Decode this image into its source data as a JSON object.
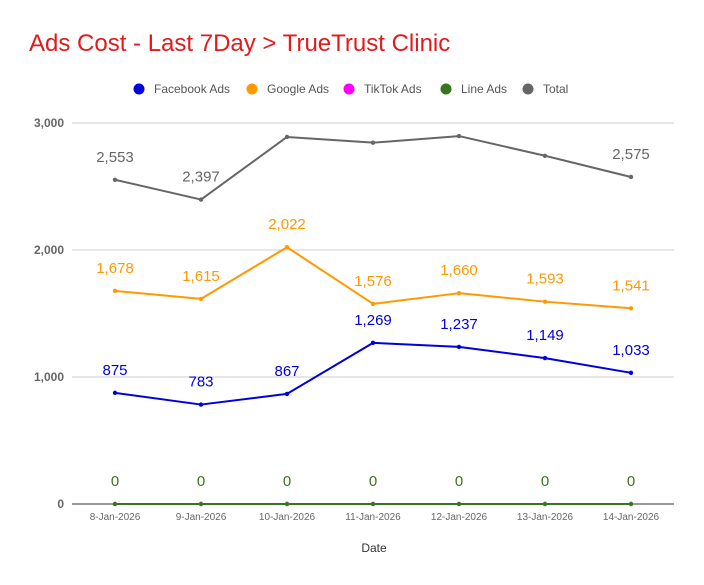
{
  "chart_data": {
    "type": "line",
    "title": "Ads Cost - Last 7Day > TrueTrust Clinic",
    "xlabel": "Date",
    "ylabel": "",
    "ylim": [
      0,
      3000
    ],
    "yticks": [
      0,
      1000,
      2000,
      3000
    ],
    "ytick_labels": [
      "0",
      "1,000",
      "2,000",
      "3,000"
    ],
    "categories": [
      "8-Jan-2026",
      "9-Jan-2026",
      "10-Jan-2026",
      "11-Jan-2026",
      "12-Jan-2026",
      "13-Jan-2026",
      "14-Jan-2026"
    ],
    "grid": true,
    "legend_position": "top-center",
    "series": [
      {
        "name": "Facebook Ads",
        "color": "#0000dd",
        "values": [
          875,
          783,
          867,
          1269,
          1237,
          1149,
          1033
        ],
        "labels": [
          "875",
          "783",
          "867",
          "1,269",
          "1,237",
          "1,149",
          "1,033"
        ],
        "show_labels": [
          true,
          true,
          true,
          true,
          true,
          true,
          true
        ]
      },
      {
        "name": "Google Ads",
        "color": "#ff9900",
        "values": [
          1678,
          1615,
          2022,
          1576,
          1660,
          1593,
          1541
        ],
        "labels": [
          "1,678",
          "1,615",
          "2,022",
          "1,576",
          "1,660",
          "1,593",
          "1,541"
        ],
        "show_labels": [
          true,
          true,
          true,
          true,
          true,
          true,
          true
        ]
      },
      {
        "name": "TikTok Ads",
        "color": "#ff00ff",
        "values": [
          0,
          0,
          0,
          0,
          0,
          0,
          0
        ],
        "labels": [],
        "show_labels": [
          false,
          false,
          false,
          false,
          false,
          false,
          false
        ]
      },
      {
        "name": "Line Ads",
        "color": "#38761d",
        "values": [
          0,
          0,
          0,
          0,
          0,
          0,
          0
        ],
        "labels": [
          "0",
          "0",
          "0",
          "0",
          "0",
          "0",
          "0"
        ],
        "show_labels": [
          true,
          true,
          true,
          true,
          true,
          true,
          true
        ]
      },
      {
        "name": "Total",
        "color": "#666666",
        "values": [
          2553,
          2397,
          2890,
          2845,
          2897,
          2742,
          2575
        ],
        "labels": [
          "2,553",
          "2,397",
          "",
          "",
          "",
          "",
          "2,575"
        ],
        "show_labels": [
          true,
          true,
          false,
          false,
          false,
          false,
          true
        ]
      }
    ]
  }
}
